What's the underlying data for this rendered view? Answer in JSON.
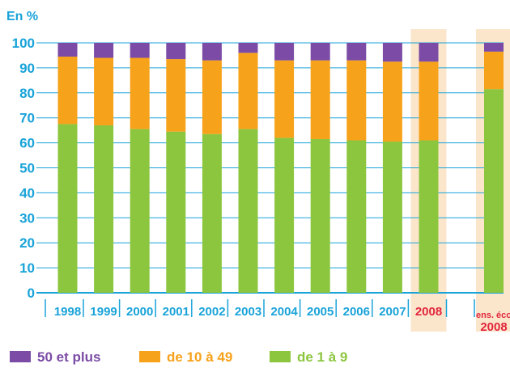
{
  "chart_data": {
    "type": "bar",
    "stacked": true,
    "ylabel": "En %",
    "ylim": [
      0,
      100
    ],
    "yticks": [
      0,
      10,
      20,
      30,
      40,
      50,
      60,
      70,
      80,
      90,
      100
    ],
    "grid": true,
    "legend_position": "bottom",
    "categories": [
      "1998",
      "1999",
      "2000",
      "2001",
      "2002",
      "2003",
      "2004",
      "2005",
      "2006",
      "2007",
      "2008",
      "ens. éco 2008"
    ],
    "highlighted_categories": [
      "2008",
      "ens. éco 2008"
    ],
    "series": [
      {
        "name": "de 1 à 9",
        "color": "#8cc63f",
        "values": [
          67.5,
          67,
          65.5,
          64.5,
          63.5,
          65.5,
          62,
          61.5,
          61,
          60.5,
          61,
          81.5
        ]
      },
      {
        "name": "de 10 à 49",
        "color": "#f7a21b",
        "values": [
          27,
          27,
          28.5,
          29,
          29.5,
          30.5,
          31,
          31.5,
          32,
          32,
          31.5,
          15
        ]
      },
      {
        "name": "50 et plus",
        "color": "#7b4ba5",
        "values": [
          5.5,
          6,
          6,
          6.5,
          7,
          4,
          7,
          7,
          7,
          7.5,
          7.5,
          3.5
        ]
      }
    ],
    "highlight_color": "#fbe6cc",
    "axis_color": "#1aa3d9",
    "legend_order": [
      "50 et plus",
      "de 10 à 49",
      "de 1 à 9"
    ]
  }
}
